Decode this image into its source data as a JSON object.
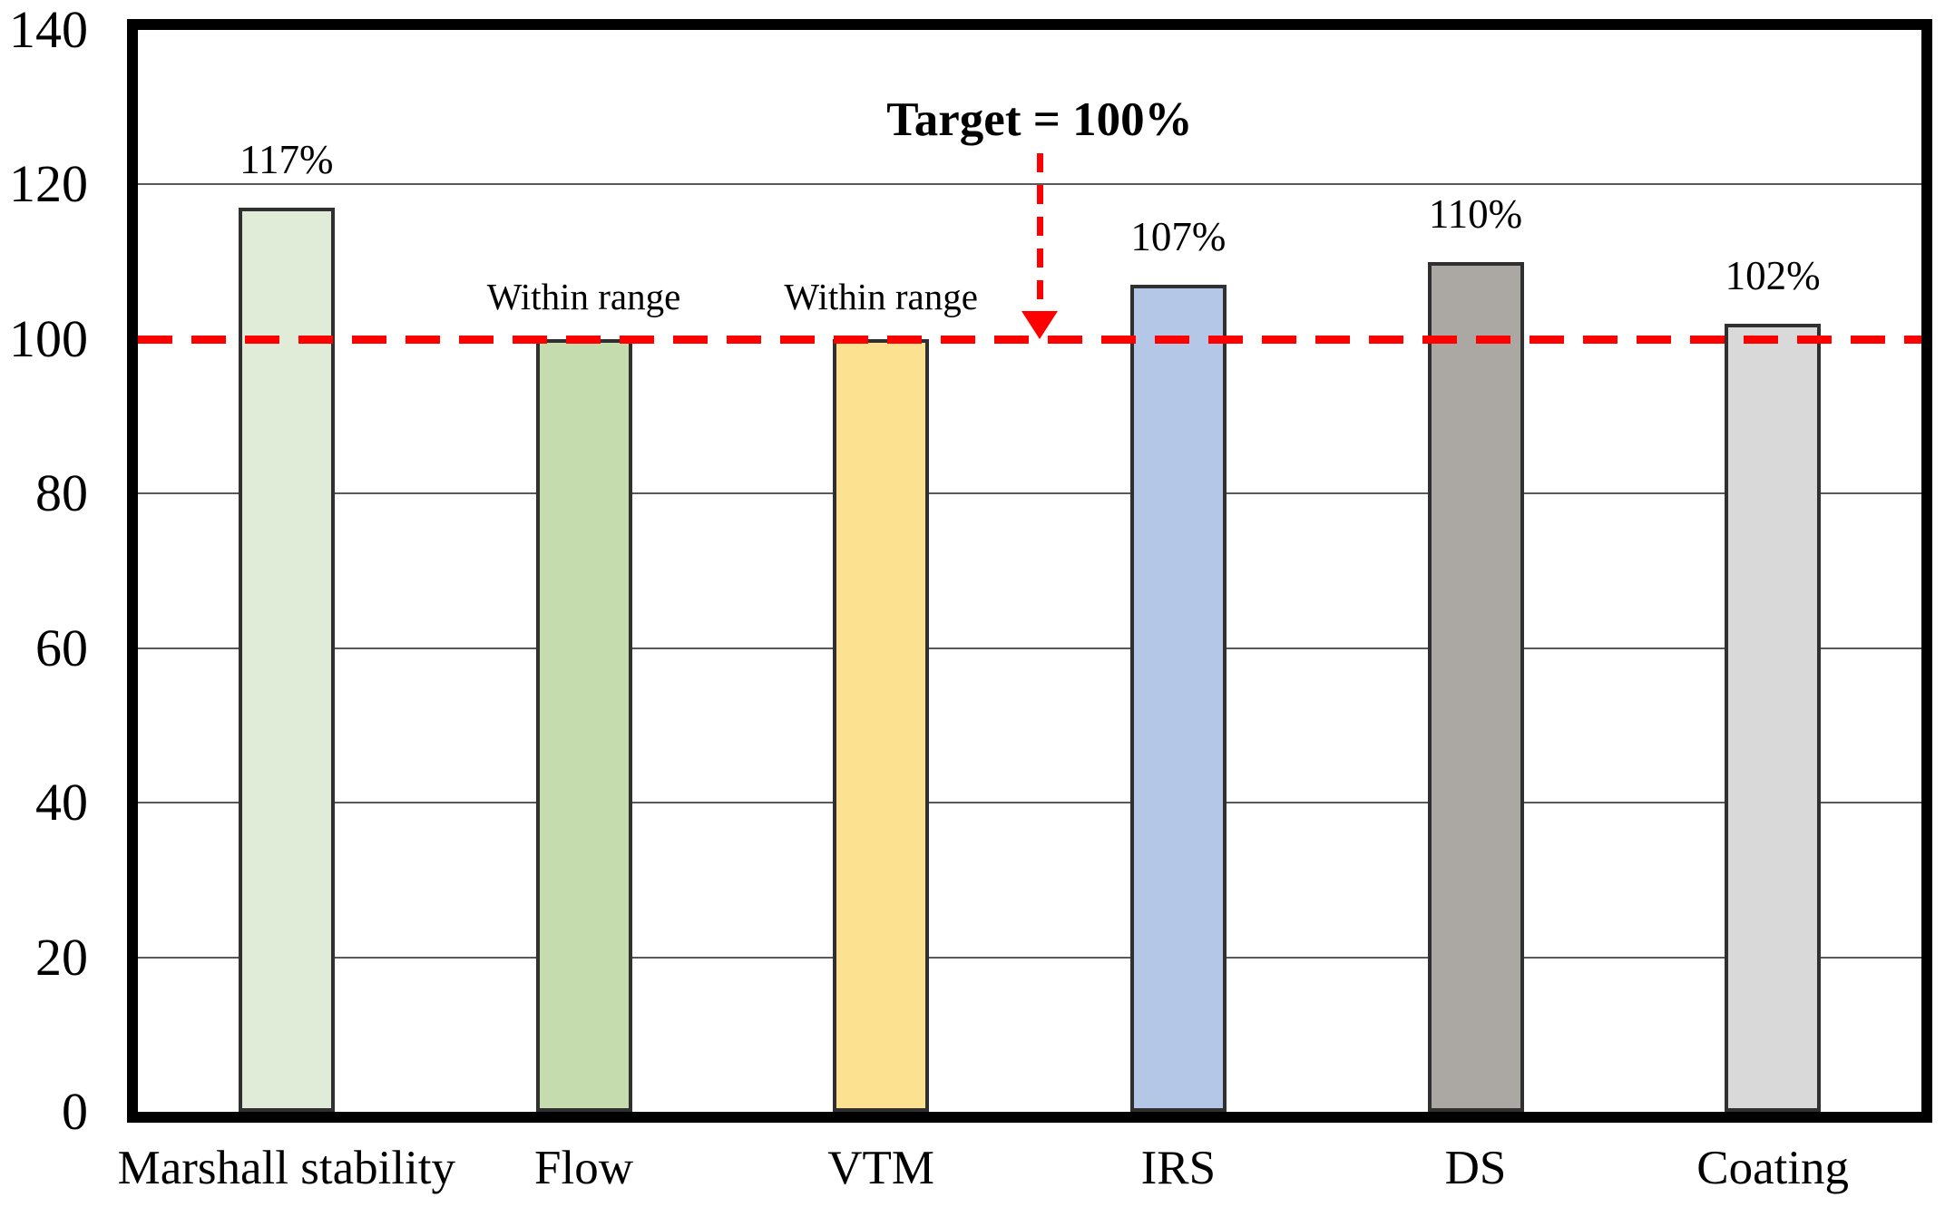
{
  "chart_data": {
    "type": "bar",
    "title": "",
    "xlabel": "",
    "ylabel": "",
    "categories": [
      "Marshall stability",
      "Flow",
      "VTM",
      "IRS",
      "DS",
      "Coating"
    ],
    "values": [
      117,
      100,
      100,
      107,
      110,
      102
    ],
    "bar_labels": [
      "117%",
      "Within range",
      "Within range",
      "107%",
      "110%",
      "102%"
    ],
    "bar_label_kinds": [
      "percent",
      "range",
      "range",
      "percent",
      "percent",
      "percent"
    ],
    "bar_colors": [
      "#e0ecd8",
      "#c5dcae",
      "#fbe190",
      "#b4c7e7",
      "#aba7a3",
      "#d9d9d9"
    ],
    "bar_border_color": "#303030",
    "ylim": [
      0,
      140
    ],
    "yticks": [
      0,
      20,
      40,
      60,
      80,
      100,
      120,
      140
    ],
    "gridline_values": [
      20,
      40,
      60,
      80,
      120
    ],
    "grid": true,
    "legend": "none",
    "gridline_color": "#595959",
    "axis_border_color": "#000000",
    "target_line": {
      "value": 100,
      "label": "Target = 100%",
      "color": "#ff0000",
      "style": "dashed"
    }
  }
}
